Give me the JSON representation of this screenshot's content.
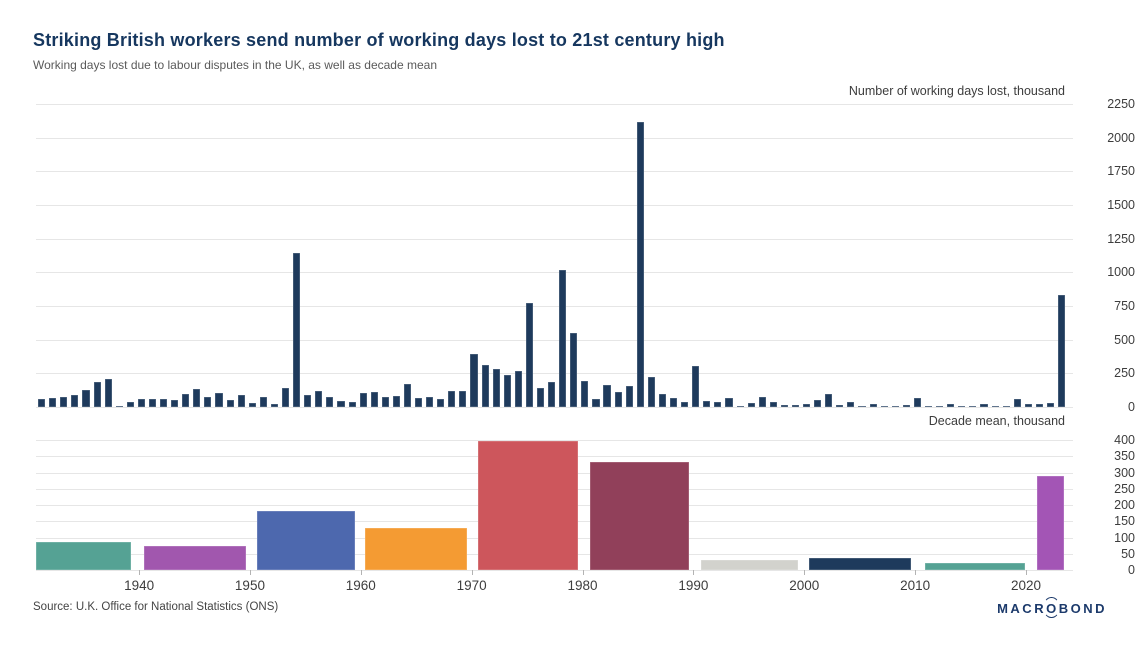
{
  "header": {
    "title": "Striking British workers send number of working days lost to 21st century high",
    "subtitle": "Working days lost due to labour disputes in the UK, as well as decade mean"
  },
  "source": "Source: U.K. Office for National Statistics (ONS)",
  "branding": {
    "logo_pre": "MACR",
    "logo_o": "O",
    "logo_post": "BOND"
  },
  "colors": {
    "bar_navy": "#1e3a5c",
    "title_text": "#16375f",
    "subtitle_text": "#5a5a5a",
    "axis_text": "#3d3d3d",
    "gridline": "#e6e6e6",
    "source_text": "#444444",
    "logo_text": "#1c3a6b"
  },
  "chart_data": [
    {
      "type": "bar",
      "title": "Number of working days lost, thousand",
      "x_start_year": 1931,
      "x_end_year": 2023,
      "ylim": [
        0,
        2250
      ],
      "ytick_step": 250,
      "yaxis_side": "right",
      "grid": "horizontal",
      "bar_color": "#1e3a5c",
      "values": [
        60,
        65,
        78,
        90,
        123,
        184,
        209,
        10,
        40,
        58,
        63,
        63,
        53,
        96,
        134,
        71,
        104,
        53,
        86,
        33,
        73,
        23,
        140,
        1145,
        86,
        121,
        78,
        45,
        40,
        104,
        108,
        78,
        83,
        172,
        70,
        78,
        58,
        121,
        121,
        396,
        313,
        280,
        235,
        270,
        773,
        142,
        189,
        1021,
        548,
        192,
        58,
        161,
        108,
        159,
        2115,
        222,
        98,
        65,
        40,
        305,
        45,
        35,
        65,
        2,
        28,
        73,
        35,
        15,
        17,
        22,
        53,
        98,
        15,
        40,
        5,
        23,
        10,
        8,
        15,
        66,
        5,
        8,
        25,
        8,
        5,
        20,
        8,
        5,
        60,
        20,
        25,
        30,
        830
      ],
      "notable_points": [
        {
          "year": 1954,
          "value": 1145
        },
        {
          "year": 1975,
          "value": 773
        },
        {
          "year": 1978,
          "value": 1021
        },
        {
          "year": 1985,
          "value": 2115
        },
        {
          "year": 2023,
          "value": 830
        }
      ]
    },
    {
      "type": "bar",
      "title": "Decade mean, thousand",
      "ylim": [
        0,
        400
      ],
      "ytick_step": 50,
      "yaxis_side": "right",
      "grid": "horizontal",
      "xticks": [
        1940,
        1950,
        1960,
        1970,
        1980,
        1990,
        2000,
        2010,
        2020
      ],
      "decades": [
        {
          "label": "1930s",
          "span": [
            1931.0,
            1939.6
          ],
          "value": 85,
          "color": "#55a294"
        },
        {
          "label": "1940s",
          "span": [
            1940.7,
            1949.9
          ],
          "value": 73,
          "color": "#a157ae"
        },
        {
          "label": "1950s",
          "span": [
            1950.9,
            1959.8
          ],
          "value": 181,
          "color": "#4d68ae"
        },
        {
          "label": "1960s",
          "span": [
            1960.7,
            1969.9
          ],
          "value": 128,
          "color": "#f49b33"
        },
        {
          "label": "1970s",
          "span": [
            1970.9,
            1979.9
          ],
          "value": 397,
          "color": "#cd565c"
        },
        {
          "label": "1980s",
          "span": [
            1981.0,
            1989.9
          ],
          "value": 332,
          "color": "#91405a"
        },
        {
          "label": "1990s",
          "span": [
            1991.0,
            1999.7
          ],
          "value": 32,
          "color": "#d2d2cd"
        },
        {
          "label": "2000s",
          "span": [
            2000.7,
            2009.9
          ],
          "value": 36,
          "color": "#1e3a5c"
        },
        {
          "label": "2010s",
          "span": [
            2011.2,
            2020.2
          ],
          "value": 21,
          "color": "#55a294"
        },
        {
          "label": "2020s",
          "span": [
            2021.3,
            2023.7
          ],
          "value": 288,
          "color": "#a355b5"
        }
      ]
    }
  ]
}
